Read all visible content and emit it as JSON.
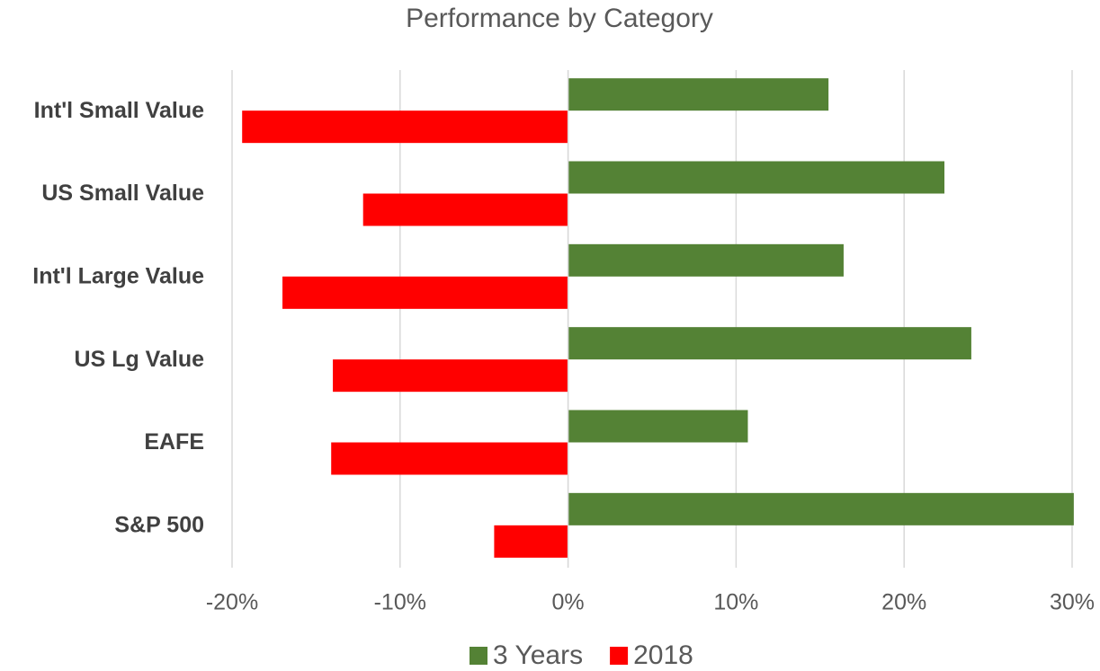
{
  "chart_data": {
    "type": "hbar",
    "title": "Performance by Category",
    "categories": [
      "Int'l Small Value",
      "US Small Value",
      "Int'l Large Value",
      "US Lg Value",
      "EAFE",
      "S&P 500"
    ],
    "series": [
      {
        "name": "3 Years",
        "color": "#548235",
        "values": [
          15.5,
          22.4,
          16.4,
          24.0,
          10.7,
          30.1
        ]
      },
      {
        "name": "2018",
        "color": "#ff0000",
        "values": [
          -19.4,
          -12.2,
          -17.0,
          -14.0,
          -14.1,
          -4.4
        ]
      }
    ],
    "xlim": [
      -20,
      30
    ],
    "xticks": [
      {
        "value": -20,
        "label": "-20%"
      },
      {
        "value": -10,
        "label": "-10%"
      },
      {
        "value": 0,
        "label": "0%"
      },
      {
        "value": 10,
        "label": "10%"
      },
      {
        "value": 20,
        "label": "20%"
      },
      {
        "value": 30,
        "label": "30%"
      }
    ],
    "grid": true,
    "legend": "bottom"
  }
}
